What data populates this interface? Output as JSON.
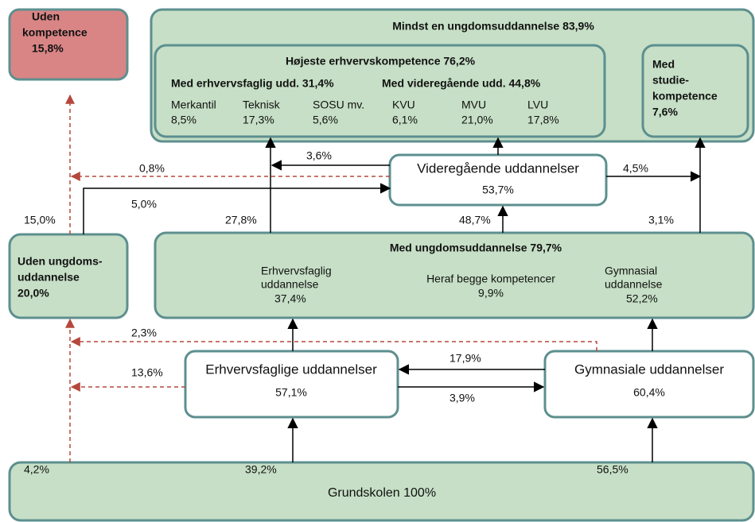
{
  "boxes": {
    "uden_kompetence": [
      "Uden",
      "kompetence",
      "15,8%"
    ],
    "mindst_en": "Mindst en ungdomsuddannelse 83,9%",
    "hoejeste": "Højeste erhvervskompetence 76,2%",
    "med_erhverv": "Med erhvervsfaglig udd. 31,4%",
    "med_videre": "Med videregående udd. 44,8%",
    "items": [
      [
        "Merkantil",
        "8,5%"
      ],
      [
        "Teknisk",
        "17,3%"
      ],
      [
        "SOSU mv.",
        "5,6%"
      ],
      [
        "KVU",
        "6,1%"
      ],
      [
        "MVU",
        "21,0%"
      ],
      [
        "LVU",
        "17,8%"
      ]
    ],
    "med_studie": [
      "Med",
      "studie-",
      "kompetence",
      "7,6%"
    ],
    "videregaaende": [
      "Videregående uddannelser",
      "53,7%"
    ],
    "uden_ungdom": [
      "Uden ungdoms-",
      "uddannelse",
      "20,0%"
    ],
    "med_ungdom": "Med ungdomsuddannelse 79,7%",
    "erhvervsfaglig": [
      "Erhvervsfaglig",
      "uddannelse",
      "37,4%"
    ],
    "begge": [
      "Heraf begge kompetencer",
      "9,9%"
    ],
    "gymnasial": [
      "Gymnasial",
      "uddannelse",
      "52,2%"
    ],
    "erhvervsfaglige": [
      "Erhvervsfaglige uddannelser",
      "57,1%"
    ],
    "gymnasiale": [
      "Gymnasiale uddannelser",
      "60,4%"
    ],
    "grundskolen": "Grundskolen 100%"
  },
  "flows": [
    "3,6%",
    "0,8%",
    "4,5%",
    "5,0%",
    "15,0%",
    "27,8%",
    "48,7%",
    "3,1%",
    "2,3%",
    "17,9%",
    "13,6%",
    "3,9%",
    "4,2%",
    "39,2%",
    "56,5%"
  ]
}
